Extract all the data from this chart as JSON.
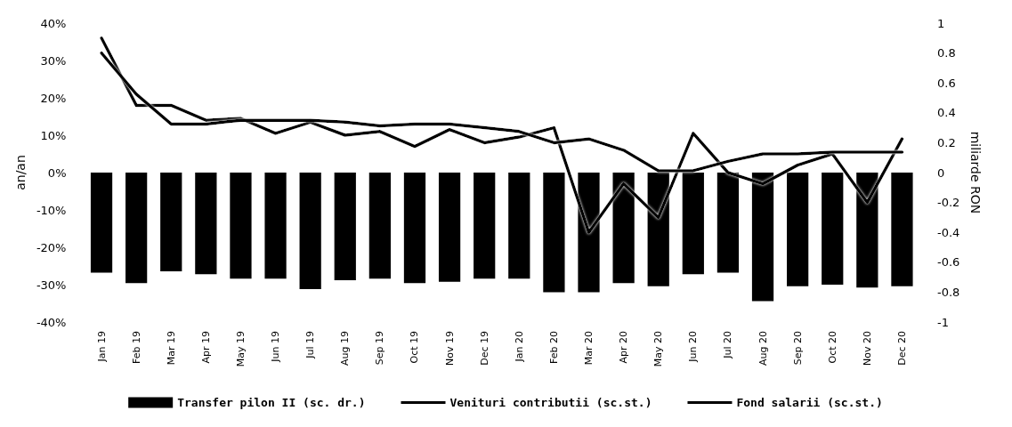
{
  "chart_data": {
    "type": "bar",
    "ylabel": "an/an",
    "y2label": "miliarde RON",
    "categories": [
      "Jan 19",
      "Feb 19",
      "Mar 19",
      "Apr 19",
      "May 19",
      "Jun 19",
      "Jul 19",
      "Aug 19",
      "Sep 19",
      "Oct 19",
      "Nov 19",
      "Dec 19",
      "Jan 20",
      "Feb 20",
      "Mar 20",
      "Apr 20",
      "May 20",
      "Jun 20",
      "Jul 20",
      "Aug 20",
      "Sep 20",
      "Oct 20",
      "Nov 20",
      "Dec 20"
    ],
    "series": [
      {
        "name": "Transfer pilon II (sc. dr.)",
        "axis": "y2",
        "color": "#000000",
        "values": [
          -0.67,
          -0.74,
          -0.66,
          -0.68,
          -0.71,
          -0.71,
          -0.78,
          -0.72,
          -0.71,
          -0.74,
          -0.73,
          -0.71,
          -0.71,
          -0.8,
          -0.8,
          -0.74,
          -0.76,
          -0.68,
          -0.67,
          -0.86,
          -0.76,
          -0.75,
          -0.77,
          -0.76
        ]
      },
      {
        "name": "Venituri contributii (sc.st.)",
        "type": "line",
        "color": "#000000",
        "values": [
          36,
          18,
          18,
          14,
          14.5,
          10.5,
          13.5,
          10,
          11,
          7,
          11.5,
          8,
          9.5,
          12,
          -16,
          -3,
          -12,
          10.5,
          0,
          -3,
          2,
          5,
          -8,
          9
        ]
      },
      {
        "name": "Fond salarii (sc.st.)",
        "type": "line",
        "color": "#000000",
        "values": [
          32,
          21,
          13,
          13,
          14,
          14,
          14,
          13.5,
          12.5,
          13,
          13,
          12,
          11,
          8,
          9,
          6,
          0.5,
          0.5,
          3,
          5,
          5,
          5.5,
          5.5,
          5.5
        ]
      }
    ],
    "ylim": [
      -40,
      40
    ],
    "yticks": [
      {
        "value": -40,
        "label": "-40%"
      },
      {
        "value": -30,
        "label": "-30%"
      },
      {
        "value": -20,
        "label": "-20%"
      },
      {
        "value": -10,
        "label": "-10%"
      },
      {
        "value": 0,
        "label": "0%"
      },
      {
        "value": 10,
        "label": "10%"
      },
      {
        "value": 20,
        "label": "20%"
      },
      {
        "value": 30,
        "label": "30%"
      },
      {
        "value": 40,
        "label": "40%"
      }
    ],
    "y2lim": [
      -1,
      1
    ],
    "y2ticks": [
      -1,
      -0.8,
      -0.6,
      -0.4,
      -0.2,
      0,
      0.2,
      0.4,
      0.6,
      0.8,
      1
    ],
    "grid": false,
    "legend": "bottom",
    "marker": "none",
    "line_style": "solid"
  }
}
